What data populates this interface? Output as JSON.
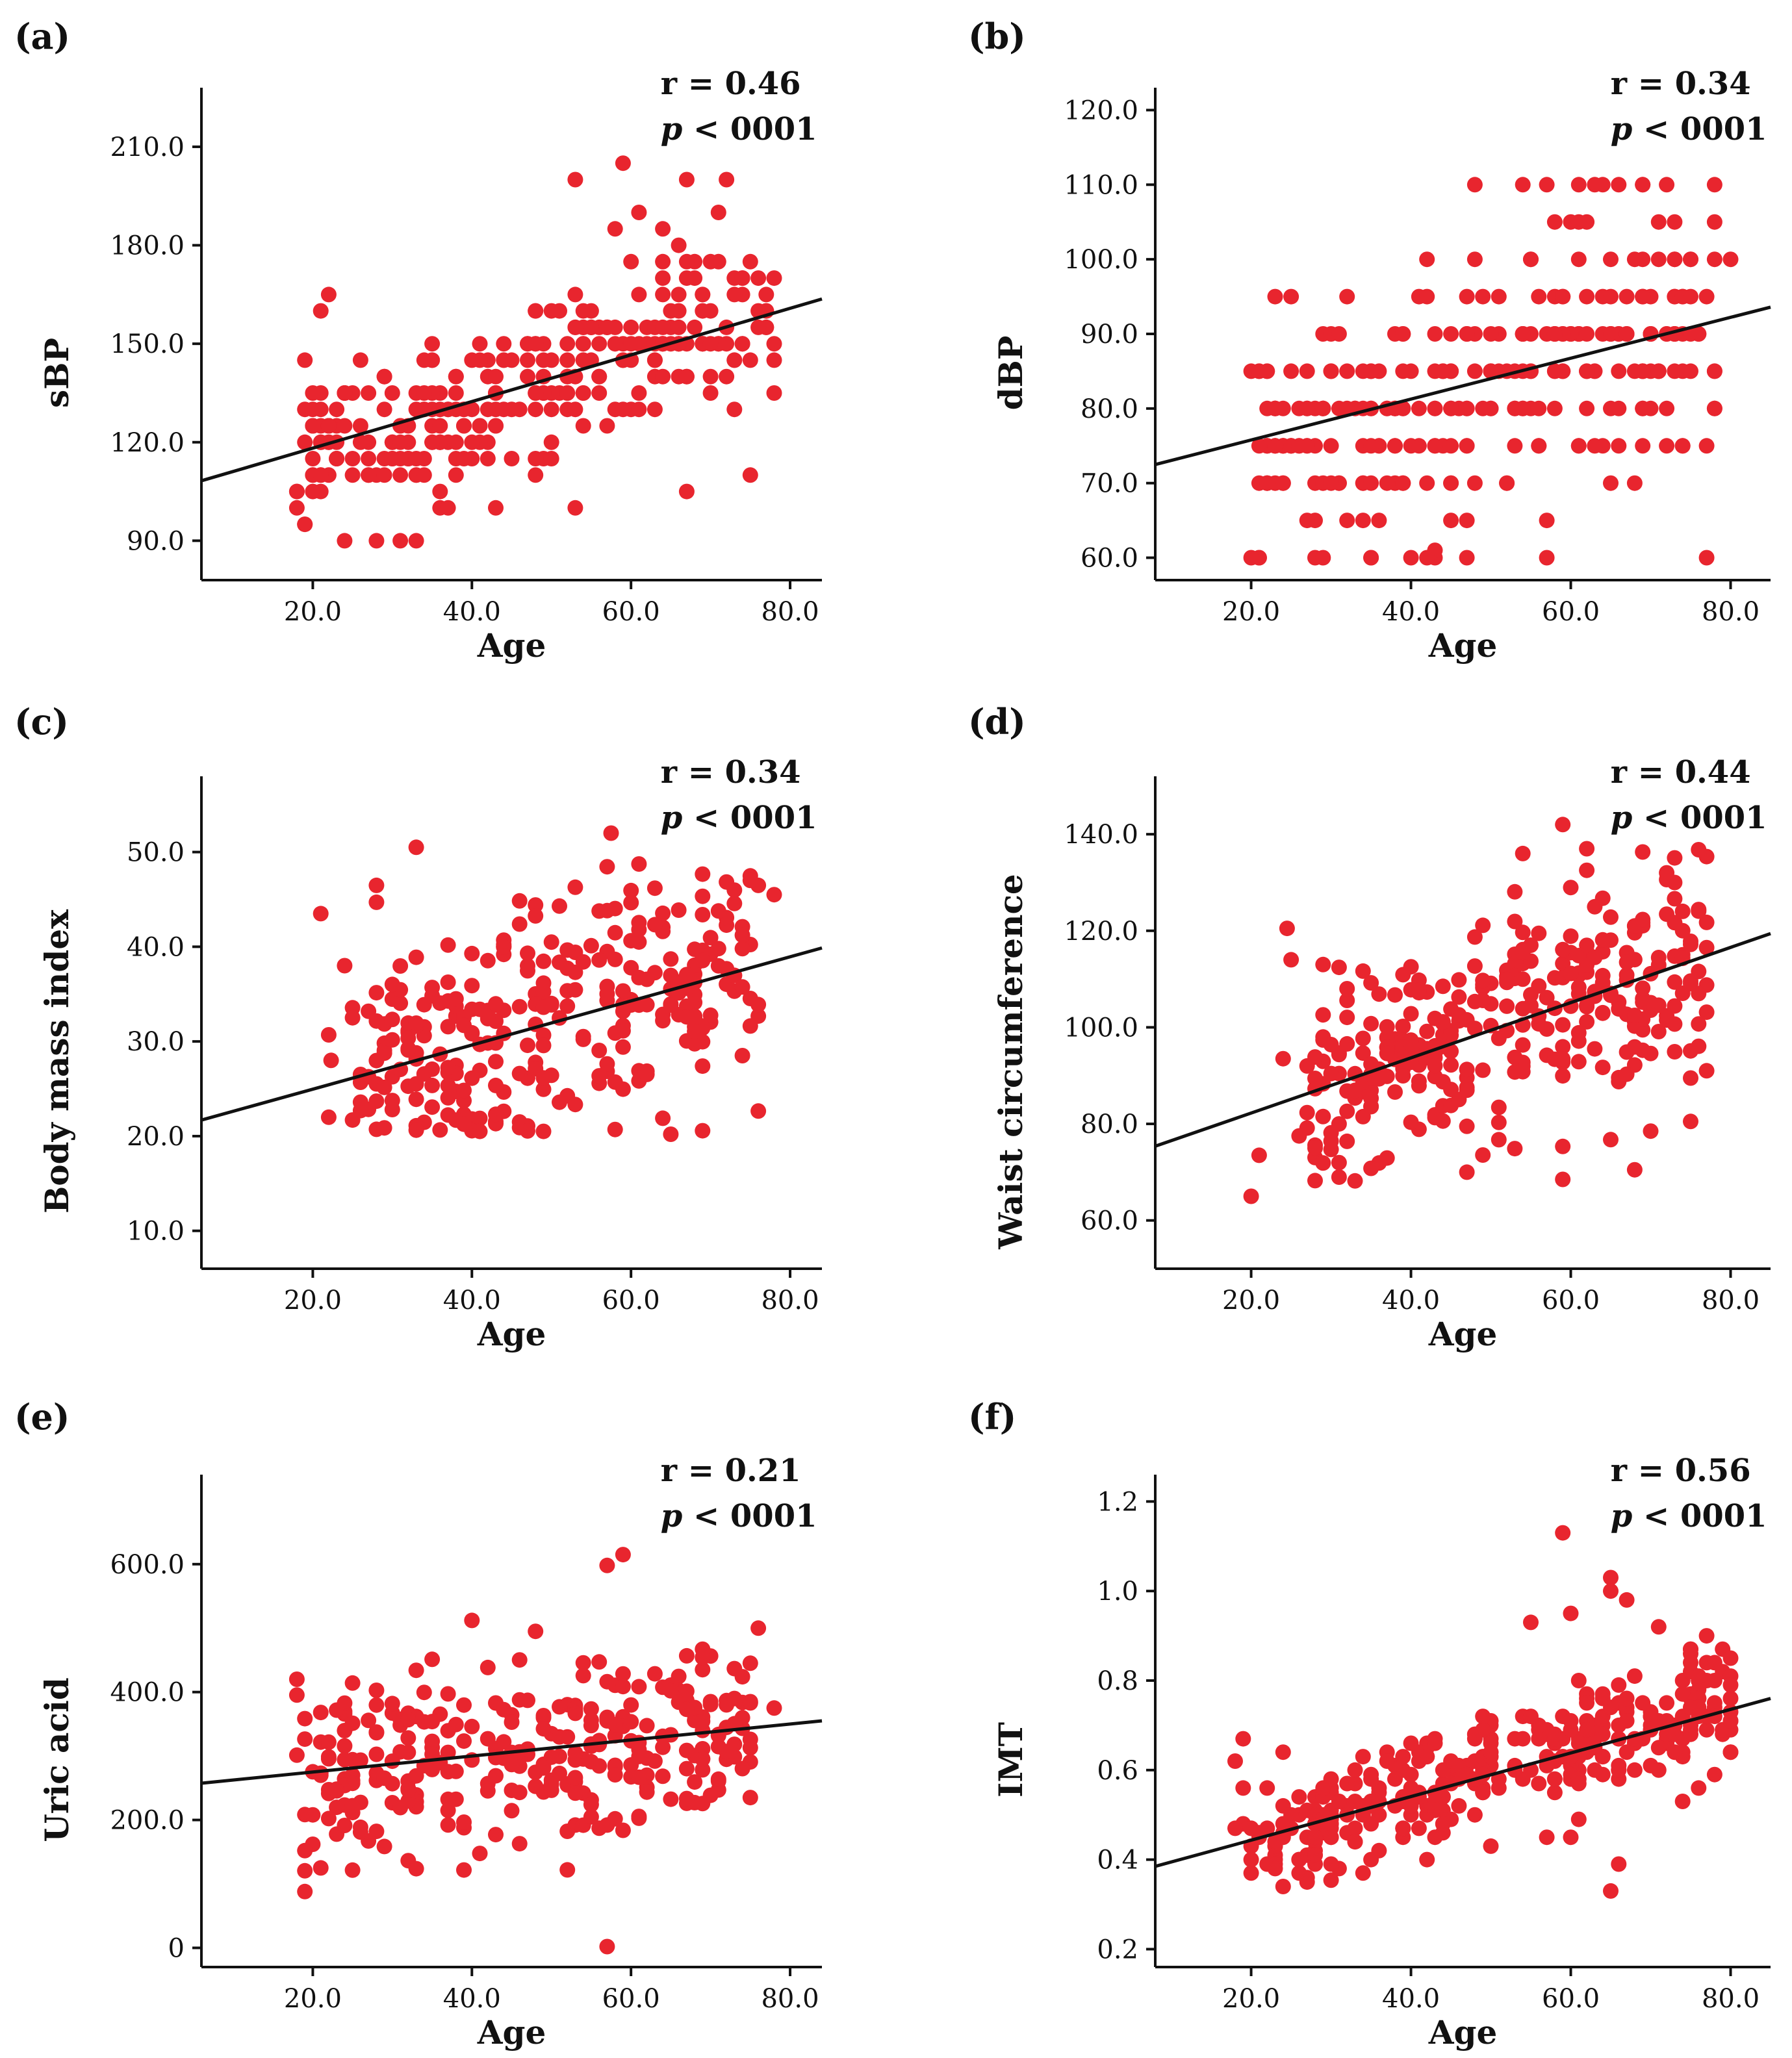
{
  "figure": {
    "point_color": "#e8252e",
    "line_color": "#111111"
  },
  "chart_data": [
    {
      "id": "a",
      "panel_label": "(a)",
      "type": "scatter",
      "xlabel": "Age",
      "ylabel": "sBP",
      "xticks": [
        20,
        40,
        60,
        80
      ],
      "xtick_labels": [
        "20.0",
        "40.0",
        "60.0",
        "80.0"
      ],
      "yticks": [
        90,
        120,
        150,
        180,
        210
      ],
      "ytick_labels": [
        "90.0",
        "120.0",
        "150.0",
        "180.0",
        "210.0"
      ],
      "xlim": [
        6,
        84
      ],
      "ylim": [
        78,
        228
      ],
      "r_text": "r = 0.46",
      "p_symbol": "p",
      "p_rest": " < 0001",
      "fit": {
        "slope": 0.71,
        "intercept": 104,
        "x_range": [
          6,
          84
        ]
      },
      "gen": {
        "seed": 11,
        "n": 300,
        "xmin": 18,
        "xmax": 78,
        "slope": 0.71,
        "intercept": 104,
        "sd": 13,
        "ymin": 90,
        "ymax": 205,
        "round": 5
      },
      "points": [
        [
          59,
          205
        ],
        [
          53,
          200
        ],
        [
          67,
          200
        ],
        [
          72,
          200
        ],
        [
          61,
          190
        ],
        [
          71,
          190
        ],
        [
          58,
          185
        ],
        [
          64,
          185
        ],
        [
          33,
          90
        ],
        [
          31,
          90
        ],
        [
          53,
          100
        ],
        [
          37,
          100
        ],
        [
          75,
          110
        ],
        [
          67,
          105
        ],
        [
          18,
          105
        ],
        [
          76,
          160
        ],
        [
          78,
          170
        ],
        [
          74,
          170
        ]
      ]
    },
    {
      "id": "b",
      "panel_label": "(b)",
      "type": "scatter",
      "xlabel": "Age",
      "ylabel": "dBP",
      "xticks": [
        20,
        40,
        60,
        80
      ],
      "xtick_labels": [
        "20.0",
        "40.0",
        "60.0",
        "80.0"
      ],
      "yticks": [
        60,
        70,
        80,
        90,
        100,
        110,
        120
      ],
      "ytick_labels": [
        "60.0",
        "70.0",
        "80.0",
        "90.0",
        "100.0",
        "110.0",
        "120.0"
      ],
      "xlim": [
        8,
        85
      ],
      "ylim": [
        57,
        123
      ],
      "r_text": "r = 0.34",
      "p_symbol": "p",
      "p_rest": " < 0001",
      "fit": {
        "slope": 0.274,
        "intercept": 70.3,
        "x_range": [
          8,
          85
        ]
      },
      "gen": {
        "seed": 23,
        "n": 300,
        "xmin": 20,
        "xmax": 78,
        "slope": 0.274,
        "intercept": 70.3,
        "sd": 8,
        "ymin": 60,
        "ymax": 110,
        "round": 5
      },
      "points": [
        [
          48,
          110
        ],
        [
          54,
          110
        ],
        [
          57,
          110
        ],
        [
          61,
          110
        ],
        [
          63,
          110
        ],
        [
          69,
          110
        ],
        [
          61,
          105
        ],
        [
          42,
          95
        ],
        [
          59,
          95
        ],
        [
          20,
          60
        ],
        [
          29,
          60
        ],
        [
          35,
          60
        ],
        [
          40,
          60
        ],
        [
          42,
          60
        ],
        [
          47,
          60
        ],
        [
          57,
          60
        ],
        [
          77,
          60
        ],
        [
          34,
          65
        ],
        [
          45,
          65
        ],
        [
          22,
          85
        ],
        [
          32,
          85
        ],
        [
          80,
          100
        ],
        [
          78,
          100
        ]
      ]
    },
    {
      "id": "c",
      "panel_label": "(c)",
      "type": "scatter",
      "xlabel": "Age",
      "ylabel": "Body mass index",
      "xticks": [
        20,
        40,
        60,
        80
      ],
      "xtick_labels": [
        "20.0",
        "40.0",
        "60.0",
        "80.0"
      ],
      "yticks": [
        10,
        20,
        30,
        40,
        50
      ],
      "ytick_labels": [
        "10.0",
        "20.0",
        "30.0",
        "40.0",
        "50.0"
      ],
      "xlim": [
        6,
        84
      ],
      "ylim": [
        6,
        58
      ],
      "r_text": "r = 0.34",
      "p_symbol": "p",
      "p_rest": " < 0001",
      "fit": {
        "slope": 0.233,
        "intercept": 20.3,
        "x_range": [
          6,
          84
        ]
      },
      "gen": {
        "seed": 37,
        "n": 290,
        "xmin": 25,
        "xmax": 76,
        "slope": 0.233,
        "intercept": 20.3,
        "sd": 6.5,
        "ymin": 20.5,
        "ymax": 49,
        "round": 0
      },
      "points": [
        [
          57.5,
          52
        ],
        [
          33,
          50.5
        ],
        [
          21,
          43.5
        ],
        [
          28,
          44.7
        ],
        [
          22,
          30.7
        ],
        [
          22.3,
          28
        ],
        [
          24,
          38
        ],
        [
          25,
          32.5
        ],
        [
          22,
          22
        ],
        [
          26,
          22.7
        ],
        [
          41,
          20.5
        ],
        [
          49,
          20.5
        ],
        [
          65,
          20.2
        ],
        [
          78,
          45.5
        ],
        [
          75,
          47
        ]
      ]
    },
    {
      "id": "d",
      "panel_label": "(d)",
      "type": "scatter",
      "xlabel": "Age",
      "ylabel": "Waist circumference",
      "xticks": [
        20,
        40,
        60,
        80
      ],
      "xtick_labels": [
        "20.0",
        "40.0",
        "60.0",
        "80.0"
      ],
      "yticks": [
        60,
        80,
        100,
        120,
        140
      ],
      "ytick_labels": [
        "60.0",
        "80.0",
        "100.0",
        "120.0",
        "140.0"
      ],
      "xlim": [
        8,
        85
      ],
      "ylim": [
        50,
        152
      ],
      "r_text": "r = 0.44",
      "p_symbol": "p",
      "p_rest": " < 0001",
      "fit": {
        "slope": 0.572,
        "intercept": 70.8,
        "x_range": [
          8,
          85
        ]
      },
      "gen": {
        "seed": 53,
        "n": 320,
        "xmin": 27,
        "xmax": 77,
        "slope": 0.572,
        "intercept": 70.8,
        "sd": 11,
        "ymin": 68,
        "ymax": 137,
        "round": 0
      },
      "points": [
        [
          20,
          65
        ],
        [
          21,
          73.5
        ],
        [
          24,
          93.5
        ],
        [
          25,
          114
        ],
        [
          24.5,
          120.5
        ],
        [
          26,
          77.5
        ],
        [
          27,
          92
        ],
        [
          29,
          98
        ],
        [
          29,
          113
        ],
        [
          59,
          142
        ],
        [
          54,
          136
        ],
        [
          62,
          137
        ],
        [
          47,
          70
        ],
        [
          59,
          68.5
        ],
        [
          68,
          70.5
        ],
        [
          72,
          132
        ],
        [
          75,
          80.5
        ],
        [
          77,
          91
        ],
        [
          70,
          78.5
        ],
        [
          32,
          108
        ]
      ]
    },
    {
      "id": "e",
      "panel_label": "(e)",
      "type": "scatter",
      "xlabel": "Age",
      "ylabel": "Uric acid",
      "xticks": [
        20,
        40,
        60,
        80
      ],
      "xtick_labels": [
        "20.0",
        "40.0",
        "60.0",
        "80.0"
      ],
      "yticks": [
        0,
        200,
        400,
        600
      ],
      "ytick_labels": [
        "0",
        "200.0",
        "400.0",
        "600.0"
      ],
      "xlim": [
        6,
        84
      ],
      "ylim": [
        -30,
        740
      ],
      "r_text": "r = 0.21",
      "p_symbol": "p",
      "p_rest": " < 0001",
      "fit": {
        "slope": 1.25,
        "intercept": 250,
        "x_range": [
          6,
          84
        ]
      },
      "gen": {
        "seed": 71,
        "n": 300,
        "xmin": 18,
        "xmax": 76,
        "slope": 1.25,
        "intercept": 250,
        "sd": 70,
        "ymin": 120,
        "ymax": 500,
        "round": 0
      },
      "points": [
        [
          57,
          598
        ],
        [
          59,
          615
        ],
        [
          40,
          512
        ],
        [
          57,
          2
        ],
        [
          19,
          88
        ],
        [
          19,
          152
        ],
        [
          18,
          420
        ],
        [
          52,
          122
        ],
        [
          48,
          495
        ],
        [
          76,
          500
        ],
        [
          78,
          375
        ],
        [
          75,
          235
        ]
      ]
    },
    {
      "id": "f",
      "panel_label": "(f)",
      "type": "scatter",
      "xlabel": "Age",
      "ylabel": "IMT",
      "xticks": [
        20,
        40,
        60,
        80
      ],
      "xtick_labels": [
        "20.0",
        "40.0",
        "60.0",
        "80.0"
      ],
      "yticks": [
        0.2,
        0.4,
        0.6,
        0.8,
        1.0,
        1.2
      ],
      "ytick_labels": [
        "0.2",
        "0.4",
        "0.6",
        "0.8",
        "1.0",
        "1.2"
      ],
      "xlim": [
        8,
        85
      ],
      "ylim": [
        0.16,
        1.26
      ],
      "r_text": "r = 0.56",
      "p_symbol": "p",
      "p_rest": " < 0001",
      "fit": {
        "slope": 0.00487,
        "intercept": 0.346,
        "x_range": [
          8,
          85
        ]
      },
      "gen": {
        "seed": 97,
        "n": 330,
        "xmin": 18,
        "xmax": 80,
        "slope": 0.00487,
        "intercept": 0.346,
        "sd": 0.075,
        "ymin": 0.35,
        "ymax": 0.95,
        "round": 0
      },
      "points": [
        [
          59,
          1.13
        ],
        [
          65,
          1.03
        ],
        [
          67,
          0.98
        ],
        [
          65,
          1.0
        ],
        [
          60,
          0.95
        ],
        [
          55,
          0.93
        ],
        [
          71,
          0.92
        ],
        [
          77,
          0.9
        ],
        [
          65,
          0.33
        ],
        [
          66,
          0.39
        ],
        [
          24,
          0.34
        ],
        [
          27,
          0.36
        ],
        [
          18,
          0.62
        ],
        [
          80,
          0.71
        ],
        [
          75,
          0.74
        ]
      ]
    }
  ]
}
